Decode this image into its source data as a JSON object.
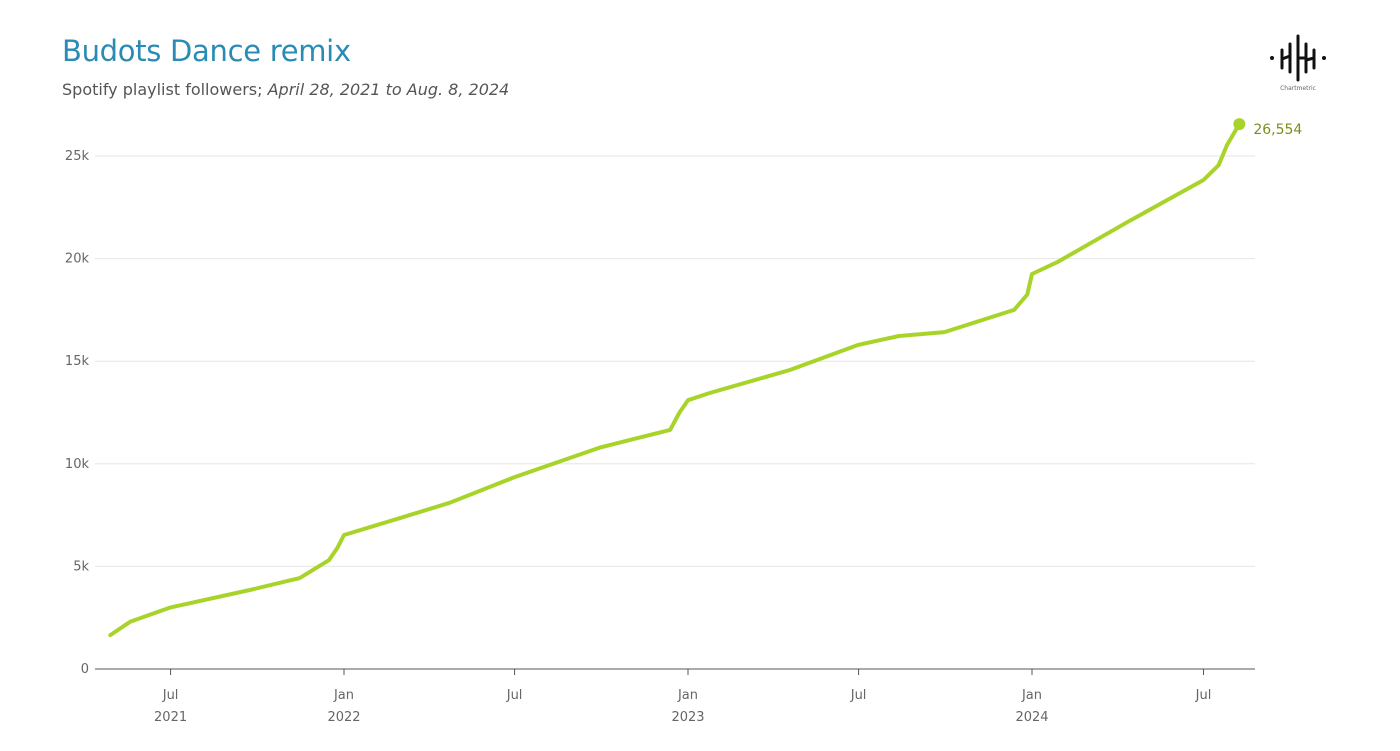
{
  "chart_data": {
    "type": "line",
    "title": "Budots Dance remix",
    "subtitle_plain": "Spotify playlist followers; ",
    "subtitle_italic": "April 28, 2021 to Aug. 8, 2024",
    "xlabel": "",
    "ylabel": "",
    "ylim": [
      0,
      25000
    ],
    "yticks": [
      0,
      5000,
      10000,
      15000,
      20000,
      25000
    ],
    "ytick_labels": [
      "0",
      "5k",
      "10k",
      "15k",
      "20k",
      "25k"
    ],
    "xticks": [
      {
        "date": "2021-07-01",
        "label": "Jul",
        "year": "2021"
      },
      {
        "date": "2022-01-01",
        "label": "Jan",
        "year": "2022"
      },
      {
        "date": "2022-07-01",
        "label": "Jul",
        "year": ""
      },
      {
        "date": "2023-01-01",
        "label": "Jan",
        "year": "2023"
      },
      {
        "date": "2023-07-01",
        "label": "Jul",
        "year": ""
      },
      {
        "date": "2024-01-01",
        "label": "Jan",
        "year": "2024"
      },
      {
        "date": "2024-07-01",
        "label": "Jul",
        "year": ""
      }
    ],
    "grid": "horizontal",
    "line_color": "#a8d42a",
    "end_label": "26,554",
    "series": [
      {
        "points": [
          [
            "2021-04-28",
            1650
          ],
          [
            "2021-05-19",
            2300
          ],
          [
            "2021-07-01",
            3000
          ],
          [
            "2021-09-23",
            3850
          ],
          [
            "2021-11-15",
            4430
          ],
          [
            "2021-12-16",
            5300
          ],
          [
            "2021-12-25",
            5900
          ],
          [
            "2022-01-01",
            6530
          ],
          [
            "2022-03-01",
            7350
          ],
          [
            "2022-04-23",
            8100
          ],
          [
            "2022-07-01",
            9350
          ],
          [
            "2022-09-30",
            10800
          ],
          [
            "2022-12-13",
            11650
          ],
          [
            "2022-12-23",
            12500
          ],
          [
            "2023-01-01",
            13100
          ],
          [
            "2023-01-24",
            13450
          ],
          [
            "2023-04-19",
            14570
          ],
          [
            "2023-07-01",
            15800
          ],
          [
            "2023-08-13",
            16230
          ],
          [
            "2023-09-30",
            16420
          ],
          [
            "2023-12-13",
            17500
          ],
          [
            "2023-12-27",
            18250
          ],
          [
            "2024-01-01",
            19250
          ],
          [
            "2024-01-28",
            19830
          ],
          [
            "2024-04-12",
            21800
          ],
          [
            "2024-07-01",
            23830
          ],
          [
            "2024-07-17",
            24550
          ],
          [
            "2024-07-26",
            25540
          ],
          [
            "2024-08-08",
            26554
          ]
        ]
      }
    ]
  },
  "logo": {
    "text": "Chartmetric"
  }
}
